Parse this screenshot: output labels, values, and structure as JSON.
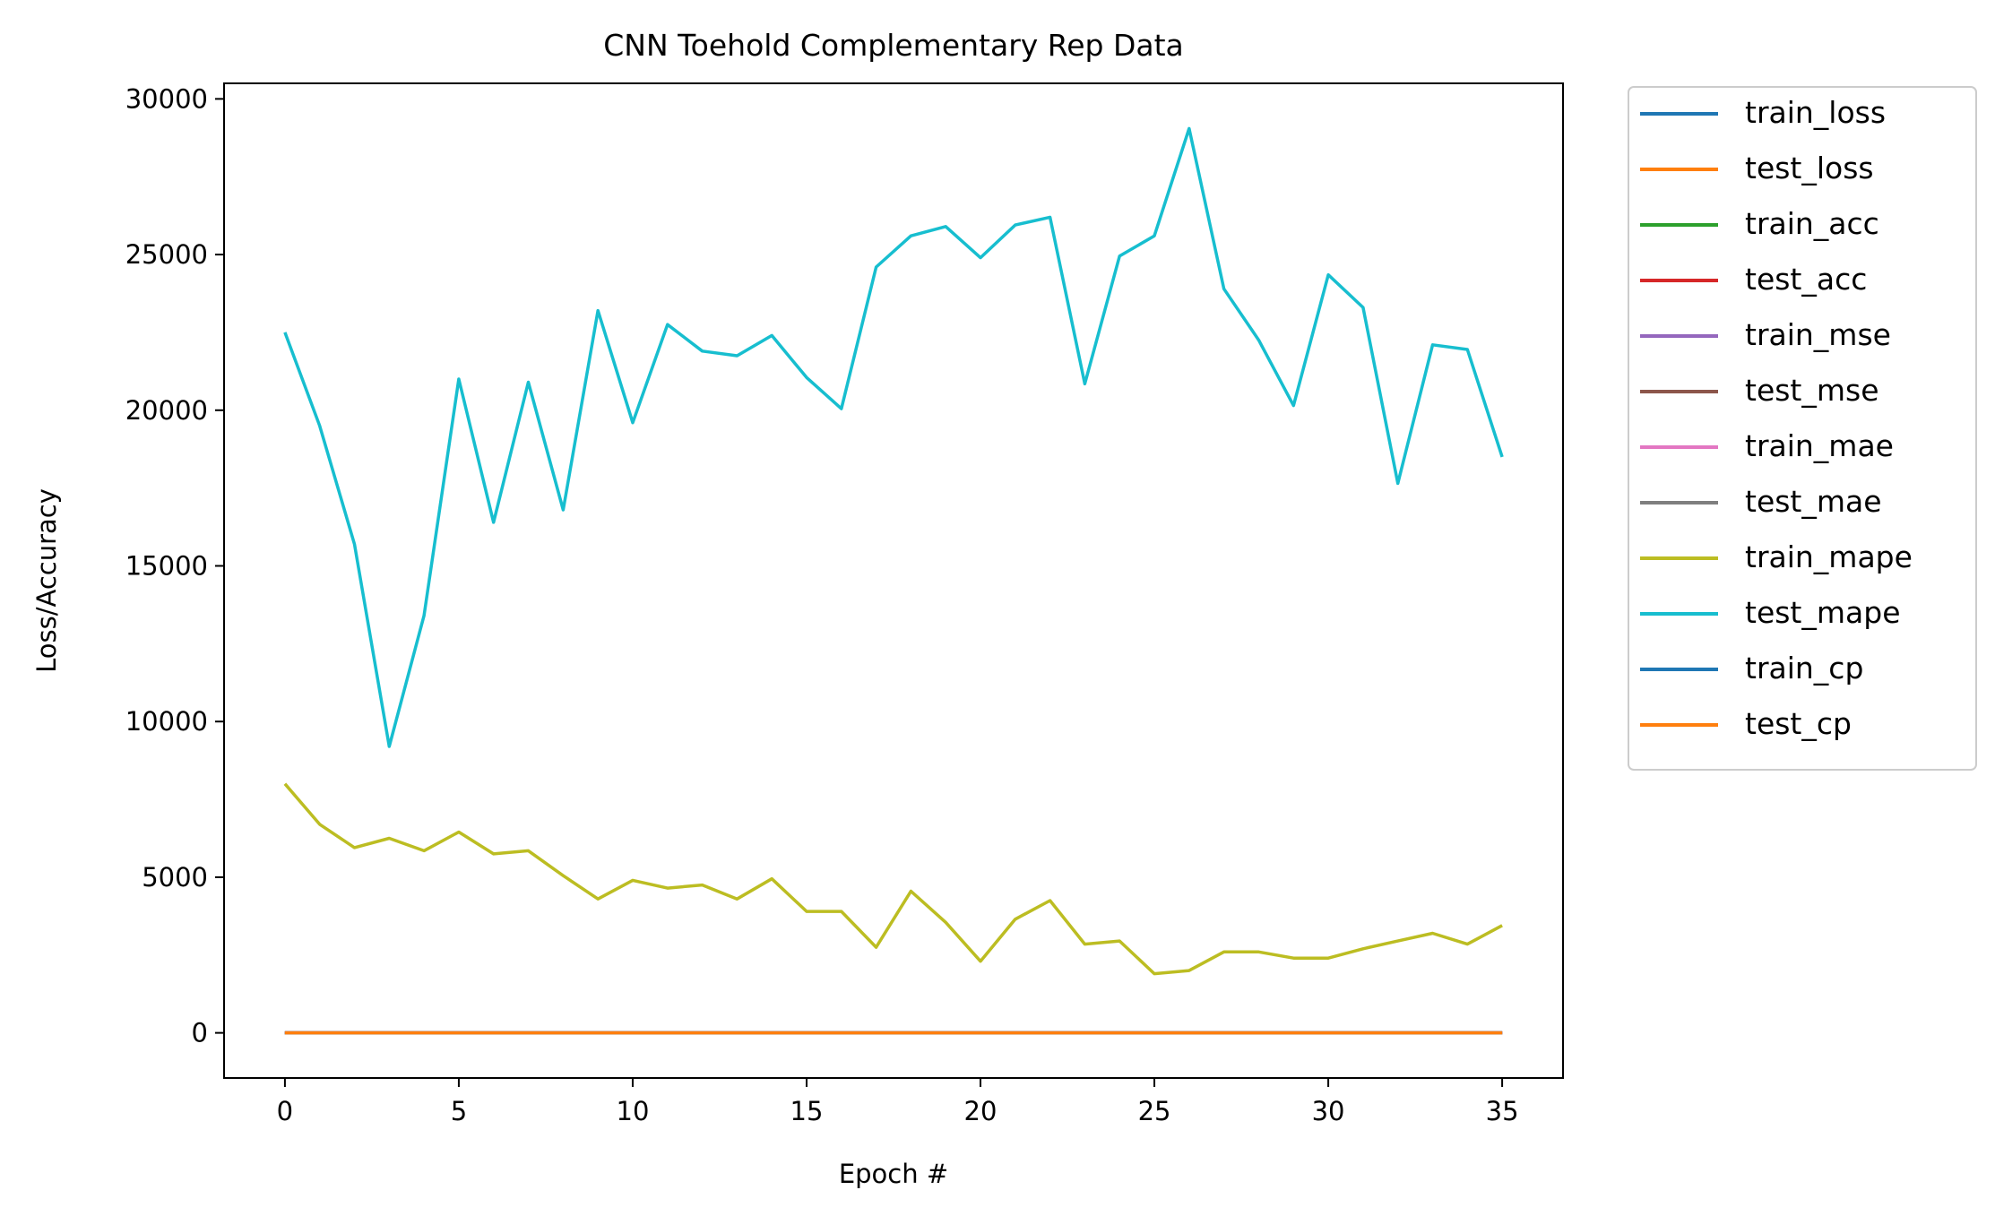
{
  "chart_data": {
    "type": "line",
    "title": "CNN Toehold Complementary Rep Data",
    "xlabel": "Epoch #",
    "ylabel": "Loss/Accuracy",
    "xlim": [
      -1.75,
      36.75
    ],
    "ylim": [
      -1450,
      30500
    ],
    "xticks": [
      0,
      5,
      10,
      15,
      20,
      25,
      30,
      35
    ],
    "xtick_labels": [
      "0",
      "5",
      "10",
      "15",
      "20",
      "25",
      "30",
      "35"
    ],
    "yticks": [
      0,
      5000,
      10000,
      15000,
      20000,
      25000,
      30000
    ],
    "ytick_labels": [
      "0",
      "5000",
      "10000",
      "15000",
      "20000",
      "25000",
      "30000"
    ],
    "grid": false,
    "legend_position": "outside-right",
    "x": [
      0,
      1,
      2,
      3,
      4,
      5,
      6,
      7,
      8,
      9,
      10,
      11,
      12,
      13,
      14,
      15,
      16,
      17,
      18,
      19,
      20,
      21,
      22,
      23,
      24,
      25,
      26,
      27,
      28,
      29,
      30,
      31,
      32,
      33,
      34,
      35
    ],
    "series": [
      {
        "name": "train_loss",
        "color": "#1f77b4",
        "values": [
          0,
          0,
          0,
          0,
          0,
          0,
          0,
          0,
          0,
          0,
          0,
          0,
          0,
          0,
          0,
          0,
          0,
          0,
          0,
          0,
          0,
          0,
          0,
          0,
          0,
          0,
          0,
          0,
          0,
          0,
          0,
          0,
          0,
          0,
          0,
          0
        ]
      },
      {
        "name": "test_loss",
        "color": "#ff7f0e",
        "values": [
          0,
          0,
          0,
          0,
          0,
          0,
          0,
          0,
          0,
          0,
          0,
          0,
          0,
          0,
          0,
          0,
          0,
          0,
          0,
          0,
          0,
          0,
          0,
          0,
          0,
          0,
          0,
          0,
          0,
          0,
          0,
          0,
          0,
          0,
          0,
          0
        ]
      },
      {
        "name": "train_acc",
        "color": "#2ca02c",
        "values": [
          0,
          0,
          0,
          0,
          0,
          0,
          0,
          0,
          0,
          0,
          0,
          0,
          0,
          0,
          0,
          0,
          0,
          0,
          0,
          0,
          0,
          0,
          0,
          0,
          0,
          0,
          0,
          0,
          0,
          0,
          0,
          0,
          0,
          0,
          0,
          0
        ]
      },
      {
        "name": "test_acc",
        "color": "#d62728",
        "values": [
          0,
          0,
          0,
          0,
          0,
          0,
          0,
          0,
          0,
          0,
          0,
          0,
          0,
          0,
          0,
          0,
          0,
          0,
          0,
          0,
          0,
          0,
          0,
          0,
          0,
          0,
          0,
          0,
          0,
          0,
          0,
          0,
          0,
          0,
          0,
          0
        ]
      },
      {
        "name": "train_mse",
        "color": "#9467bd",
        "values": [
          0,
          0,
          0,
          0,
          0,
          0,
          0,
          0,
          0,
          0,
          0,
          0,
          0,
          0,
          0,
          0,
          0,
          0,
          0,
          0,
          0,
          0,
          0,
          0,
          0,
          0,
          0,
          0,
          0,
          0,
          0,
          0,
          0,
          0,
          0,
          0
        ]
      },
      {
        "name": "test_mse",
        "color": "#8c564b",
        "values": [
          0,
          0,
          0,
          0,
          0,
          0,
          0,
          0,
          0,
          0,
          0,
          0,
          0,
          0,
          0,
          0,
          0,
          0,
          0,
          0,
          0,
          0,
          0,
          0,
          0,
          0,
          0,
          0,
          0,
          0,
          0,
          0,
          0,
          0,
          0,
          0
        ]
      },
      {
        "name": "train_mae",
        "color": "#e377c2",
        "values": [
          0,
          0,
          0,
          0,
          0,
          0,
          0,
          0,
          0,
          0,
          0,
          0,
          0,
          0,
          0,
          0,
          0,
          0,
          0,
          0,
          0,
          0,
          0,
          0,
          0,
          0,
          0,
          0,
          0,
          0,
          0,
          0,
          0,
          0,
          0,
          0
        ]
      },
      {
        "name": "test_mae",
        "color": "#7f7f7f",
        "values": [
          0,
          0,
          0,
          0,
          0,
          0,
          0,
          0,
          0,
          0,
          0,
          0,
          0,
          0,
          0,
          0,
          0,
          0,
          0,
          0,
          0,
          0,
          0,
          0,
          0,
          0,
          0,
          0,
          0,
          0,
          0,
          0,
          0,
          0,
          0,
          0
        ]
      },
      {
        "name": "train_mape",
        "color": "#bcbd22",
        "values": [
          8000,
          6700,
          5950,
          6250,
          5850,
          6450,
          5750,
          5850,
          5050,
          4300,
          4900,
          4650,
          4750,
          4300,
          4950,
          3900,
          3900,
          2750,
          4550,
          3550,
          2300,
          3650,
          4250,
          2850,
          2950,
          1900,
          2000,
          2600,
          2600,
          2400,
          2400,
          2700,
          2950,
          3200,
          2850,
          3450
        ]
      },
      {
        "name": "test_mape",
        "color": "#17becf",
        "values": [
          22500,
          19500,
          15700,
          9200,
          13400,
          21000,
          16400,
          20900,
          16800,
          23200,
          19600,
          22750,
          21900,
          21750,
          22400,
          21050,
          20050,
          24600,
          25600,
          25900,
          24900,
          25950,
          26200,
          20850,
          24950,
          25600,
          29050,
          23900,
          22250,
          20150,
          24350,
          23300,
          17650,
          22100,
          21950,
          18500
        ]
      },
      {
        "name": "train_cp",
        "color": "#1f77b4",
        "values": [
          0,
          0,
          0,
          0,
          0,
          0,
          0,
          0,
          0,
          0,
          0,
          0,
          0,
          0,
          0,
          0,
          0,
          0,
          0,
          0,
          0,
          0,
          0,
          0,
          0,
          0,
          0,
          0,
          0,
          0,
          0,
          0,
          0,
          0,
          0,
          0
        ]
      },
      {
        "name": "test_cp",
        "color": "#ff7f0e",
        "values": [
          0,
          0,
          0,
          0,
          0,
          0,
          0,
          0,
          0,
          0,
          0,
          0,
          0,
          0,
          0,
          0,
          0,
          0,
          0,
          0,
          0,
          0,
          0,
          0,
          0,
          0,
          0,
          0,
          0,
          0,
          0,
          0,
          0,
          0,
          0,
          0
        ]
      }
    ]
  }
}
